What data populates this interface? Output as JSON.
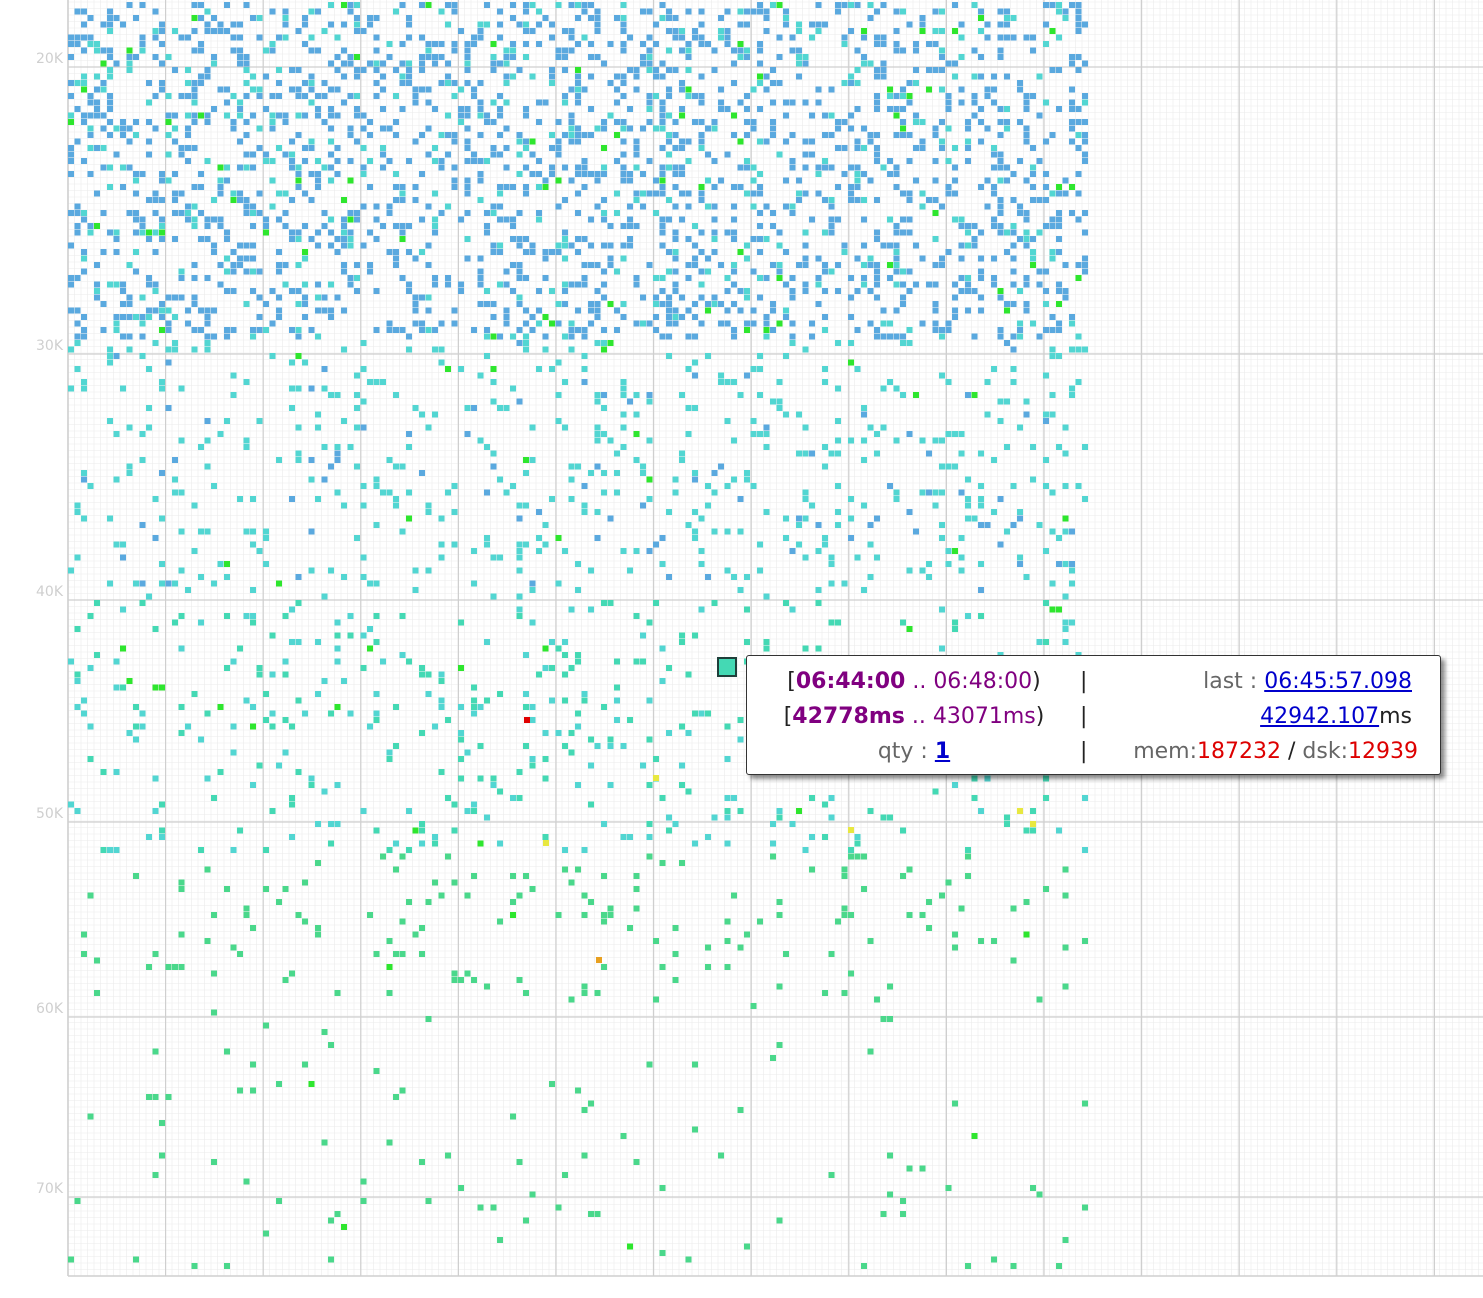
{
  "chart_data": {
    "type": "heatmap",
    "y_ticks": [
      "20K",
      "30K",
      "40K",
      "50K",
      "60K",
      "70K"
    ],
    "y_tick_values": [
      20000,
      30000,
      40000,
      50000,
      60000,
      70000
    ],
    "ylim": [
      16000,
      74000
    ],
    "grid": true,
    "colors": {
      "blue": "#5aa9df",
      "cyan": "#52d6d2",
      "teal": "#44d9b4",
      "green": "#4ad88b",
      "lime": "#2ee62e",
      "yellow": "#e8e840",
      "orange": "#e8a020",
      "red": "#e00000",
      "grid_major": "#cfcfcf",
      "grid_minor": "#ececec"
    },
    "highlight": {
      "color": "#44d9b4",
      "value_ms": 42942.107
    }
  },
  "tooltip": {
    "time_start": "06:44:00",
    "time_dots": " .. ",
    "time_end": "06:48:00",
    "ms_start": "42778ms",
    "ms_dots": " .. ",
    "ms_end": "43071ms",
    "separator": "|",
    "qty_label": "qty : ",
    "qty_value": "1",
    "last_label": "last : ",
    "last_value": "06:45:57.098",
    "value_link": "42942.107",
    "value_unit": "ms",
    "mem_label": "mem:",
    "mem_value": "187232",
    "slash": " / ",
    "dsk_label": "dsk:",
    "dsk_value": "12939"
  }
}
